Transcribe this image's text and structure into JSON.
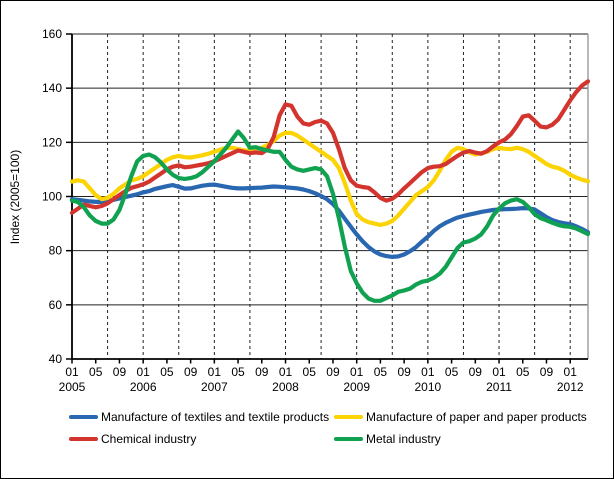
{
  "chart_data": {
    "type": "line",
    "title": "",
    "ylabel": "Index (2005=100)",
    "ylim": [
      40,
      160
    ],
    "ytick_interval": 20,
    "y_ticks": [
      40,
      60,
      80,
      100,
      120,
      140,
      160
    ],
    "frequency": "monthly",
    "x_start": "2005-01",
    "x_end": "2012-04",
    "x_tick_labels_pattern": [
      "01",
      "05",
      "09"
    ],
    "x_years": [
      "2005",
      "2006",
      "2007",
      "2008",
      "2009",
      "2010",
      "2011",
      "2012"
    ],
    "grid": {
      "horizontal": "solid",
      "vertical": "dashed every 6 months"
    },
    "legend_position": "bottom",
    "series": [
      {
        "name": "Manufacture of textiles and textile products",
        "color": "#2a67b1",
        "values": [
          99,
          98.8,
          98.5,
          98.2,
          98,
          98,
          98.3,
          98.8,
          99.3,
          99.8,
          100.3,
          100.8,
          101.5,
          102,
          102.8,
          103.3,
          103.8,
          104.2,
          103.6,
          102.9,
          103,
          103.5,
          104,
          104.3,
          104.4,
          104,
          103.6,
          103.2,
          103,
          103,
          103.1,
          103.2,
          103.3,
          103.5,
          103.7,
          103.6,
          103.4,
          103.2,
          103,
          102.6,
          102,
          101.2,
          100.2,
          99,
          97.2,
          94.8,
          91.8,
          88.8,
          86,
          83.5,
          81.3,
          79.7,
          78.6,
          78,
          77.7,
          77.9,
          78.6,
          79.8,
          81.3,
          83.3,
          85.2,
          87.3,
          89,
          90.3,
          91.3,
          92.2,
          92.8,
          93.3,
          93.8,
          94.3,
          94.7,
          95,
          95.2,
          95.3,
          95.4,
          95.5,
          95.7,
          95.6,
          95.2,
          93.8,
          92.4,
          91.3,
          90.6,
          90.1,
          89.8,
          89,
          88,
          86.8
        ]
      },
      {
        "name": "Manufacture of paper and paper products",
        "color": "#fcd303",
        "values": [
          105.5,
          106,
          105.5,
          103,
          100.5,
          99,
          99.5,
          101,
          103,
          104.5,
          106,
          106.5,
          107.5,
          109,
          110.5,
          112,
          113.5,
          114.5,
          115,
          114.5,
          114.4,
          114.8,
          115.2,
          115.8,
          116.5,
          117.3,
          118,
          118,
          117.5,
          117,
          117,
          117.5,
          118,
          119,
          120.5,
          122.5,
          123.5,
          123.5,
          122.5,
          121,
          119.5,
          118,
          116.5,
          115,
          113.5,
          110.5,
          105,
          98.5,
          93.5,
          91.5,
          90.5,
          90,
          89.5,
          90,
          91,
          93,
          95.5,
          98,
          100.5,
          102,
          103.5,
          106,
          109.5,
          113.5,
          116.5,
          118,
          117.5,
          116.3,
          115.5,
          116,
          116.5,
          117.5,
          118,
          117.6,
          117.5,
          118,
          117.5,
          116.5,
          115,
          113.5,
          112,
          111,
          110.5,
          109.5,
          108,
          107,
          106.2,
          105.6
        ]
      },
      {
        "name": "Chemical industry",
        "color": "#d3352e",
        "values": [
          94,
          95.5,
          97,
          96.5,
          96,
          96.5,
          97.5,
          99,
          100.5,
          102,
          103.2,
          103.8,
          104.5,
          105.5,
          107,
          108.5,
          110,
          111,
          111.5,
          110.8,
          111,
          111.4,
          111.8,
          112.3,
          113,
          114,
          115,
          116,
          117,
          116.5,
          116,
          116.3,
          116,
          117.5,
          122,
          130,
          134,
          133.5,
          129.5,
          127,
          126.5,
          127.5,
          128,
          127,
          123.5,
          117.5,
          110.5,
          106,
          104,
          103.5,
          103.2,
          101.5,
          99.5,
          98.5,
          99.2,
          100.8,
          103,
          105,
          107,
          109,
          110.5,
          111,
          111.2,
          112,
          113.5,
          115,
          116.2,
          116.8,
          116.2,
          115.8,
          116.8,
          118.5,
          120,
          121,
          123,
          126,
          129.5,
          130,
          128,
          125.8,
          125.5,
          126.5,
          128.5,
          132,
          135.5,
          138.5,
          141,
          142.5
        ]
      },
      {
        "name": "Metal industry",
        "color": "#10a151",
        "values": [
          98.5,
          98,
          96,
          93,
          91,
          90,
          90,
          91.5,
          95,
          101,
          107.5,
          113,
          115,
          115.5,
          114.5,
          112.5,
          110,
          108,
          106.8,
          106.5,
          106.8,
          107.5,
          109,
          111,
          113,
          115.5,
          118,
          121,
          124,
          121.5,
          118,
          118.2,
          117.5,
          117,
          116.5,
          116.5,
          113.5,
          111,
          110,
          109.5,
          110,
          110.5,
          110,
          107.5,
          101,
          92,
          81.5,
          72.5,
          68,
          64.5,
          62.3,
          61.5,
          61.5,
          62.5,
          63.5,
          64.8,
          65.3,
          66,
          67.5,
          68.5,
          69,
          70,
          71.5,
          74,
          77.5,
          81,
          83,
          83.5,
          84.5,
          86,
          89,
          93,
          95.5,
          97.5,
          98.5,
          99,
          98,
          96,
          93.5,
          92,
          91.2,
          90.3,
          89.5,
          89,
          88.8,
          88.2,
          87.2,
          86.1
        ]
      }
    ]
  }
}
